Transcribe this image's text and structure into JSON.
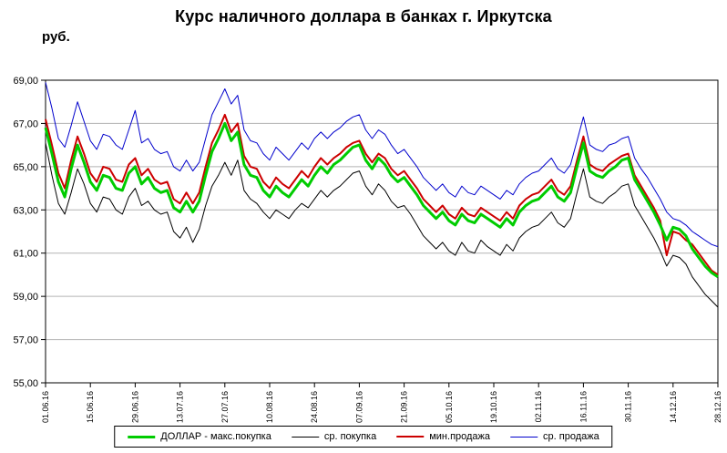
{
  "chart_data": {
    "type": "line",
    "title": "Курс наличного доллара в банках г. Иркутска",
    "ylabel": "руб.",
    "xlabel": "",
    "ylim": [
      55,
      69
    ],
    "y_tick_step": 2,
    "y_tick_labels": [
      "55,00",
      "57,00",
      "59,00",
      "61,00",
      "63,00",
      "65,00",
      "67,00",
      "69,00"
    ],
    "x_tick_labels": [
      "01.06.16",
      "15.06.16",
      "29.06.16",
      "13.07.16",
      "27.07.16",
      "10.08.16",
      "24.08.16",
      "07.09.16",
      "21.09.16",
      "05.10.16",
      "19.10.16",
      "02.11.16",
      "16.11.16",
      "30.11.16",
      "14.12.16",
      "28.12.16"
    ],
    "x_tick_every": 7,
    "grid": "horizontal",
    "legend_position": "bottom",
    "series": [
      {
        "name": "ДОЛЛАР - макс.покупка",
        "color": "#00CC00",
        "width": 3,
        "values": [
          66.8,
          65.6,
          64.3,
          63.6,
          64.9,
          66.0,
          65.2,
          64.3,
          63.9,
          64.6,
          64.5,
          64.0,
          63.9,
          64.7,
          65.0,
          64.2,
          64.5,
          64.0,
          63.8,
          63.9,
          63.1,
          62.9,
          63.4,
          62.9,
          63.4,
          64.6,
          65.7,
          66.3,
          67.0,
          66.2,
          66.6,
          65.1,
          64.6,
          64.5,
          63.9,
          63.6,
          64.1,
          63.8,
          63.6,
          64.0,
          64.4,
          64.1,
          64.6,
          65.0,
          64.7,
          65.1,
          65.3,
          65.6,
          65.9,
          66.0,
          65.3,
          64.9,
          65.4,
          65.1,
          64.6,
          64.3,
          64.5,
          64.1,
          63.7,
          63.2,
          62.9,
          62.6,
          62.9,
          62.5,
          62.3,
          62.8,
          62.5,
          62.4,
          62.8,
          62.6,
          62.4,
          62.2,
          62.6,
          62.3,
          62.9,
          63.2,
          63.4,
          63.5,
          63.8,
          64.1,
          63.6,
          63.4,
          63.8,
          65.0,
          66.1,
          64.8,
          64.6,
          64.5,
          64.8,
          65.0,
          65.3,
          65.4,
          64.4,
          63.9,
          63.4,
          62.9,
          62.3,
          61.6,
          62.2,
          62.1,
          61.8,
          61.2,
          60.8,
          60.4,
          60.1,
          59.9
        ]
      },
      {
        "name": "ср. покупка",
        "color": "#000000",
        "width": 1,
        "values": [
          66.1,
          64.6,
          63.3,
          62.8,
          63.8,
          64.9,
          64.2,
          63.3,
          62.9,
          63.6,
          63.5,
          63.0,
          62.8,
          63.6,
          64.0,
          63.2,
          63.4,
          63.0,
          62.8,
          62.9,
          62.0,
          61.7,
          62.2,
          61.5,
          62.1,
          63.2,
          64.1,
          64.6,
          65.2,
          64.6,
          65.3,
          63.9,
          63.5,
          63.3,
          62.9,
          62.6,
          63.0,
          62.8,
          62.6,
          63.0,
          63.3,
          63.1,
          63.5,
          63.9,
          63.6,
          63.9,
          64.1,
          64.4,
          64.7,
          64.8,
          64.1,
          63.7,
          64.2,
          63.9,
          63.4,
          63.1,
          63.2,
          62.8,
          62.3,
          61.8,
          61.5,
          61.2,
          61.5,
          61.1,
          60.9,
          61.5,
          61.1,
          61.0,
          61.6,
          61.3,
          61.1,
          60.9,
          61.4,
          61.1,
          61.7,
          62.0,
          62.2,
          62.3,
          62.6,
          62.9,
          62.4,
          62.2,
          62.6,
          63.8,
          64.9,
          63.6,
          63.4,
          63.3,
          63.6,
          63.8,
          64.1,
          64.2,
          63.2,
          62.7,
          62.2,
          61.7,
          61.1,
          60.4,
          60.9,
          60.8,
          60.5,
          59.9,
          59.5,
          59.1,
          58.8,
          58.5
        ]
      },
      {
        "name": "мин.продажа",
        "color": "#CC0000",
        "width": 2,
        "values": [
          67.2,
          66.0,
          64.7,
          64.0,
          65.3,
          66.4,
          65.6,
          64.7,
          64.3,
          65.0,
          64.9,
          64.4,
          64.3,
          65.1,
          65.4,
          64.6,
          64.9,
          64.4,
          64.2,
          64.3,
          63.5,
          63.3,
          63.8,
          63.3,
          63.8,
          65.0,
          66.1,
          66.7,
          67.4,
          66.6,
          67.0,
          65.5,
          65.0,
          64.9,
          64.3,
          64.0,
          64.5,
          64.2,
          64.0,
          64.4,
          64.8,
          64.5,
          65.0,
          65.4,
          65.1,
          65.4,
          65.6,
          65.9,
          66.1,
          66.2,
          65.6,
          65.2,
          65.6,
          65.4,
          64.9,
          64.6,
          64.8,
          64.4,
          64.0,
          63.5,
          63.2,
          62.9,
          63.2,
          62.8,
          62.6,
          63.1,
          62.8,
          62.7,
          63.1,
          62.9,
          62.7,
          62.5,
          62.9,
          62.6,
          63.2,
          63.5,
          63.7,
          63.8,
          64.1,
          64.4,
          63.9,
          63.7,
          64.1,
          65.3,
          66.4,
          65.1,
          64.9,
          64.8,
          65.1,
          65.3,
          65.5,
          65.6,
          64.6,
          64.1,
          63.6,
          63.1,
          62.5,
          60.9,
          62.0,
          61.9,
          61.6,
          61.4,
          61.0,
          60.6,
          60.2,
          60.0
        ]
      },
      {
        "name": "ср. продажа",
        "color": "#0000CC",
        "width": 1,
        "values": [
          68.9,
          67.7,
          66.3,
          65.9,
          66.9,
          68.0,
          67.1,
          66.2,
          65.8,
          66.5,
          66.4,
          66.0,
          65.8,
          66.7,
          67.6,
          66.1,
          66.3,
          65.8,
          65.6,
          65.7,
          65.0,
          64.8,
          65.3,
          64.8,
          65.2,
          66.3,
          67.4,
          68.0,
          68.6,
          67.9,
          68.3,
          66.7,
          66.2,
          66.1,
          65.6,
          65.3,
          65.9,
          65.6,
          65.3,
          65.7,
          66.1,
          65.8,
          66.3,
          66.6,
          66.3,
          66.6,
          66.8,
          67.1,
          67.3,
          67.4,
          66.7,
          66.3,
          66.7,
          66.5,
          66.0,
          65.6,
          65.8,
          65.4,
          65.0,
          64.5,
          64.2,
          63.9,
          64.2,
          63.8,
          63.6,
          64.1,
          63.8,
          63.7,
          64.1,
          63.9,
          63.7,
          63.5,
          63.9,
          63.7,
          64.2,
          64.5,
          64.7,
          64.8,
          65.1,
          65.4,
          64.9,
          64.7,
          65.1,
          66.2,
          67.3,
          66.0,
          65.8,
          65.7,
          66.0,
          66.1,
          66.3,
          66.4,
          65.4,
          64.9,
          64.5,
          64.0,
          63.5,
          62.9,
          62.6,
          62.5,
          62.3,
          62.0,
          61.8,
          61.6,
          61.4,
          61.3
        ]
      }
    ]
  }
}
